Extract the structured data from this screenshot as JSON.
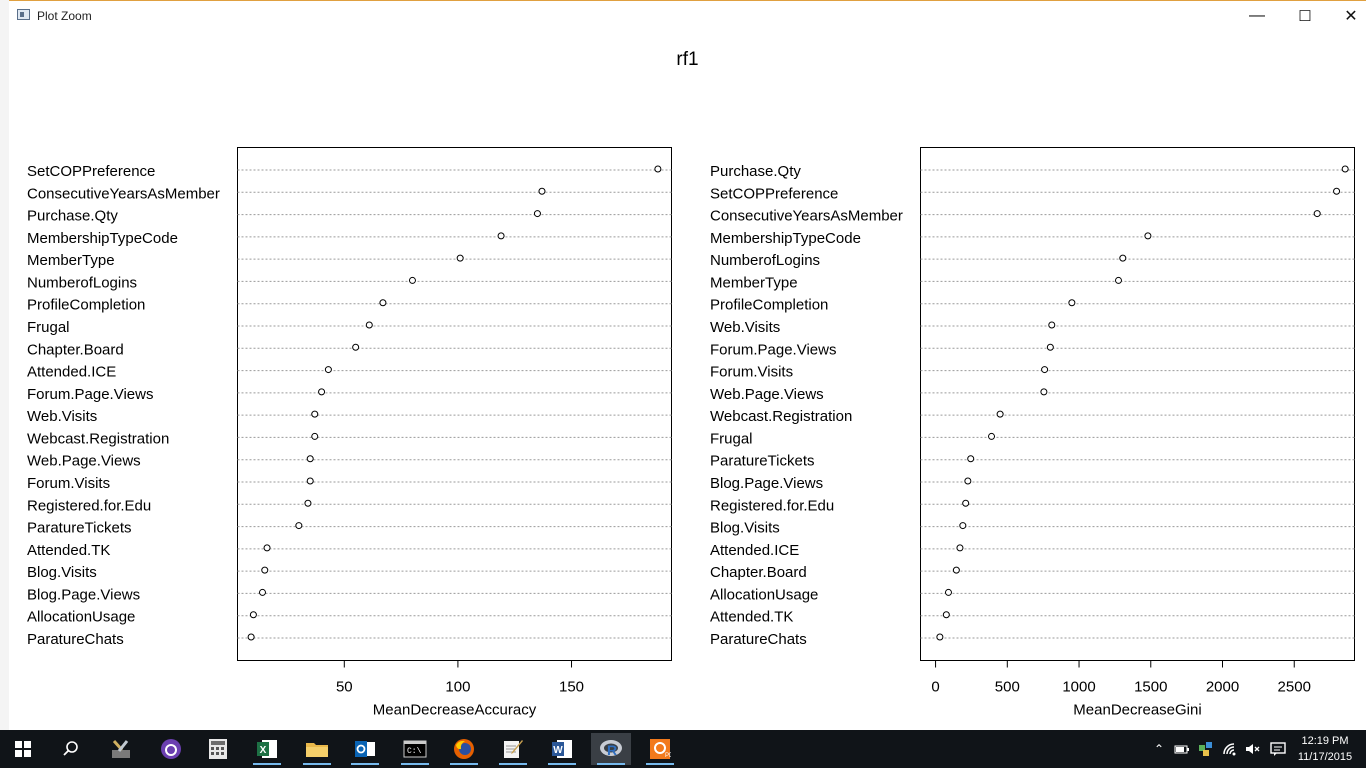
{
  "window": {
    "title": "Plot Zoom",
    "minimize": "—",
    "maximize": "☐",
    "close": "✕"
  },
  "chart_data": [
    {
      "type": "scatter",
      "title": "rf1",
      "xlabel": "MeanDecreaseAccuracy",
      "ylabel": "",
      "xlim": [
        3,
        194
      ],
      "xticks": [
        50,
        100,
        150
      ],
      "grid": true,
      "categories": [
        "SetCOPPreference",
        "ConsecutiveYearsAsMember",
        "Purchase.Qty",
        "MembershipTypeCode",
        "MemberType",
        "NumberofLogins",
        "ProfileCompletion",
        "Frugal",
        "Chapter.Board",
        "Attended.ICE",
        "Forum.Page.Views",
        "Web.Visits",
        "Webcast.Registration",
        "Web.Page.Views",
        "Forum.Visits",
        "Registered.for.Edu",
        "ParatureTickets",
        "Attended.TK",
        "Blog.Visits",
        "Blog.Page.Views",
        "AllocationUsage",
        "ParatureChats"
      ],
      "values": [
        188,
        137,
        135,
        119,
        101,
        80,
        67,
        61,
        55,
        43,
        40,
        37,
        37,
        35,
        35,
        34,
        30,
        16,
        15,
        14,
        10,
        9
      ]
    },
    {
      "type": "scatter",
      "title": "",
      "xlabel": "MeanDecreaseGini",
      "ylabel": "",
      "xlim": [
        -105,
        2920
      ],
      "xticks": [
        0,
        500,
        1000,
        1500,
        2000,
        2500
      ],
      "grid": true,
      "categories": [
        "Purchase.Qty",
        "SetCOPPreference",
        "ConsecutiveYearsAsMember",
        "MembershipTypeCode",
        "NumberofLogins",
        "MemberType",
        "ProfileCompletion",
        "Web.Visits",
        "Forum.Page.Views",
        "Forum.Visits",
        "Web.Page.Views",
        "Webcast.Registration",
        "Frugal",
        "ParatureTickets",
        "Blog.Page.Views",
        "Registered.for.Edu",
        "Blog.Visits",
        "Attended.ICE",
        "Chapter.Board",
        "AllocationUsage",
        "Attended.TK",
        "ParatureChats"
      ],
      "values": [
        2855,
        2795,
        2660,
        1480,
        1305,
        1275,
        950,
        810,
        800,
        760,
        755,
        450,
        390,
        245,
        225,
        210,
        190,
        170,
        145,
        90,
        75,
        30
      ]
    }
  ],
  "taskbar": {
    "apps": [
      "start-icon",
      "search-icon",
      "tools-icon",
      "app-icon",
      "calculator-icon",
      "excel-icon",
      "file-explorer-icon",
      "outlook-icon",
      "cmd-icon",
      "firefox-icon",
      "notepad-icon",
      "word-icon",
      "r-icon",
      "pdf-icon"
    ],
    "running": [
      5,
      6,
      7,
      8,
      9,
      10,
      11,
      12,
      13
    ],
    "active": 12,
    "clock_time": "12:19 PM",
    "clock_date": "11/17/2015"
  }
}
